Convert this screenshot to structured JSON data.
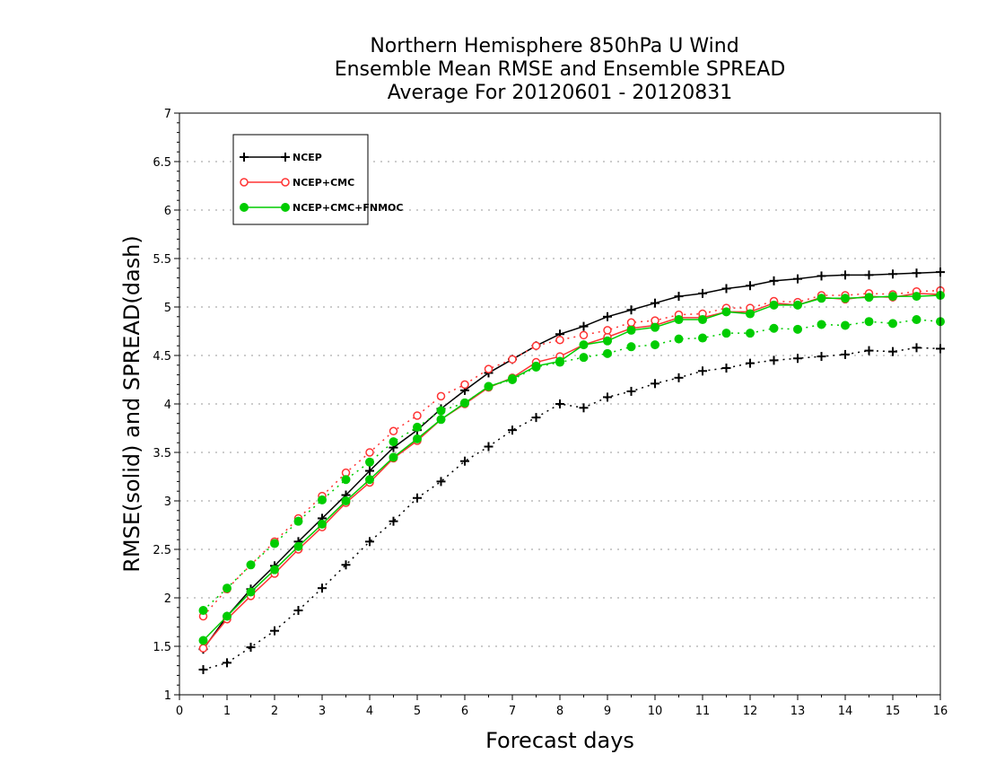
{
  "chart_data": {
    "type": "line",
    "title_lines": [
      "Northern Hemisphere 850hPa U Wind",
      "Ensemble Mean RMSE and Ensemble SPREAD",
      "Average For 20120601 - 20120831"
    ],
    "xlabel": "Forecast days",
    "ylabel": "RMSE(solid) and SPREAD(dash)",
    "xlim": [
      0,
      16
    ],
    "ylim": [
      1,
      7
    ],
    "x_ticks": [
      0,
      1,
      2,
      3,
      4,
      5,
      6,
      7,
      8,
      9,
      10,
      11,
      12,
      13,
      14,
      15,
      16
    ],
    "y_ticks": [
      1,
      1.5,
      2,
      2.5,
      3,
      3.5,
      4,
      4.5,
      5,
      5.5,
      6,
      6.5,
      7
    ],
    "y_tick_labels": [
      "1",
      "1.5",
      "2",
      "2.5",
      "3",
      "3.5",
      "4",
      "4.5",
      "5",
      "5.5",
      "6",
      "6.5",
      "7"
    ],
    "grid": "horizontal dotted",
    "legend_position": "top-left",
    "x": [
      0.5,
      1,
      1.5,
      2,
      2.5,
      3,
      3.5,
      4,
      4.5,
      5,
      5.5,
      6,
      6.5,
      7,
      7.5,
      8,
      8.5,
      9,
      9.5,
      10,
      10.5,
      11,
      11.5,
      12,
      12.5,
      13,
      13.5,
      14,
      14.5,
      15,
      15.5,
      16
    ],
    "series": [
      {
        "name": "NCEP",
        "metric": "RMSE",
        "style": "solid",
        "marker": "plus",
        "color": "#000000",
        "values": [
          1.47,
          1.81,
          2.09,
          2.33,
          2.58,
          2.82,
          3.06,
          3.31,
          3.55,
          3.73,
          3.95,
          4.14,
          4.32,
          4.46,
          4.6,
          4.72,
          4.8,
          4.9,
          4.97,
          5.04,
          5.11,
          5.14,
          5.19,
          5.22,
          5.27,
          5.29,
          5.32,
          5.33,
          5.33,
          5.34,
          5.35,
          5.36
        ]
      },
      {
        "name": "NCEP",
        "metric": "SPREAD",
        "style": "dash",
        "marker": "plus",
        "color": "#000000",
        "values": [
          1.26,
          1.33,
          1.49,
          1.66,
          1.87,
          2.1,
          2.34,
          2.58,
          2.79,
          3.03,
          3.2,
          3.41,
          3.56,
          3.73,
          3.86,
          4.0,
          3.96,
          4.07,
          4.13,
          4.21,
          4.27,
          4.34,
          4.37,
          4.42,
          4.45,
          4.47,
          4.49,
          4.51,
          4.55,
          4.54,
          4.58,
          4.57
        ]
      },
      {
        "name": "NCEP+CMC",
        "metric": "RMSE",
        "style": "solid",
        "marker": "open-circle",
        "color": "#ff3333",
        "values": [
          1.48,
          1.78,
          2.02,
          2.25,
          2.5,
          2.73,
          2.98,
          3.19,
          3.44,
          3.62,
          3.84,
          4.0,
          4.17,
          4.27,
          4.43,
          4.49,
          4.61,
          4.69,
          4.78,
          4.81,
          4.89,
          4.89,
          4.95,
          4.95,
          5.04,
          5.02,
          5.1,
          5.08,
          5.11,
          5.1,
          5.14,
          5.13
        ]
      },
      {
        "name": "NCEP+CMC",
        "metric": "SPREAD",
        "style": "dash",
        "marker": "open-circle",
        "color": "#ff3333",
        "values": [
          1.81,
          2.09,
          2.34,
          2.58,
          2.82,
          3.05,
          3.29,
          3.5,
          3.72,
          3.88,
          4.08,
          4.2,
          4.36,
          4.46,
          4.6,
          4.66,
          4.71,
          4.76,
          4.84,
          4.86,
          4.92,
          4.93,
          4.99,
          4.99,
          5.06,
          5.05,
          5.12,
          5.12,
          5.14,
          5.13,
          5.16,
          5.17
        ]
      },
      {
        "name": "NCEP+CMC+FNMOC",
        "metric": "RMSE",
        "style": "solid",
        "marker": "filled-circle",
        "color": "#00cc00",
        "values": [
          1.56,
          1.81,
          2.06,
          2.29,
          2.53,
          2.76,
          3.0,
          3.22,
          3.45,
          3.64,
          3.84,
          4.01,
          4.18,
          4.26,
          4.39,
          4.44,
          4.61,
          4.65,
          4.76,
          4.79,
          4.87,
          4.87,
          4.95,
          4.93,
          5.02,
          5.02,
          5.09,
          5.09,
          5.1,
          5.11,
          5.11,
          5.12
        ]
      },
      {
        "name": "NCEP+CMC+FNMOC",
        "metric": "SPREAD",
        "style": "dash",
        "marker": "filled-circle",
        "color": "#00cc00",
        "values": [
          1.87,
          2.1,
          2.34,
          2.56,
          2.79,
          3.01,
          3.22,
          3.4,
          3.61,
          3.76,
          3.93,
          4.01,
          4.18,
          4.25,
          4.38,
          4.43,
          4.48,
          4.52,
          4.59,
          4.61,
          4.67,
          4.68,
          4.73,
          4.73,
          4.78,
          4.77,
          4.82,
          4.81,
          4.85,
          4.83,
          4.87,
          4.85
        ]
      }
    ]
  }
}
